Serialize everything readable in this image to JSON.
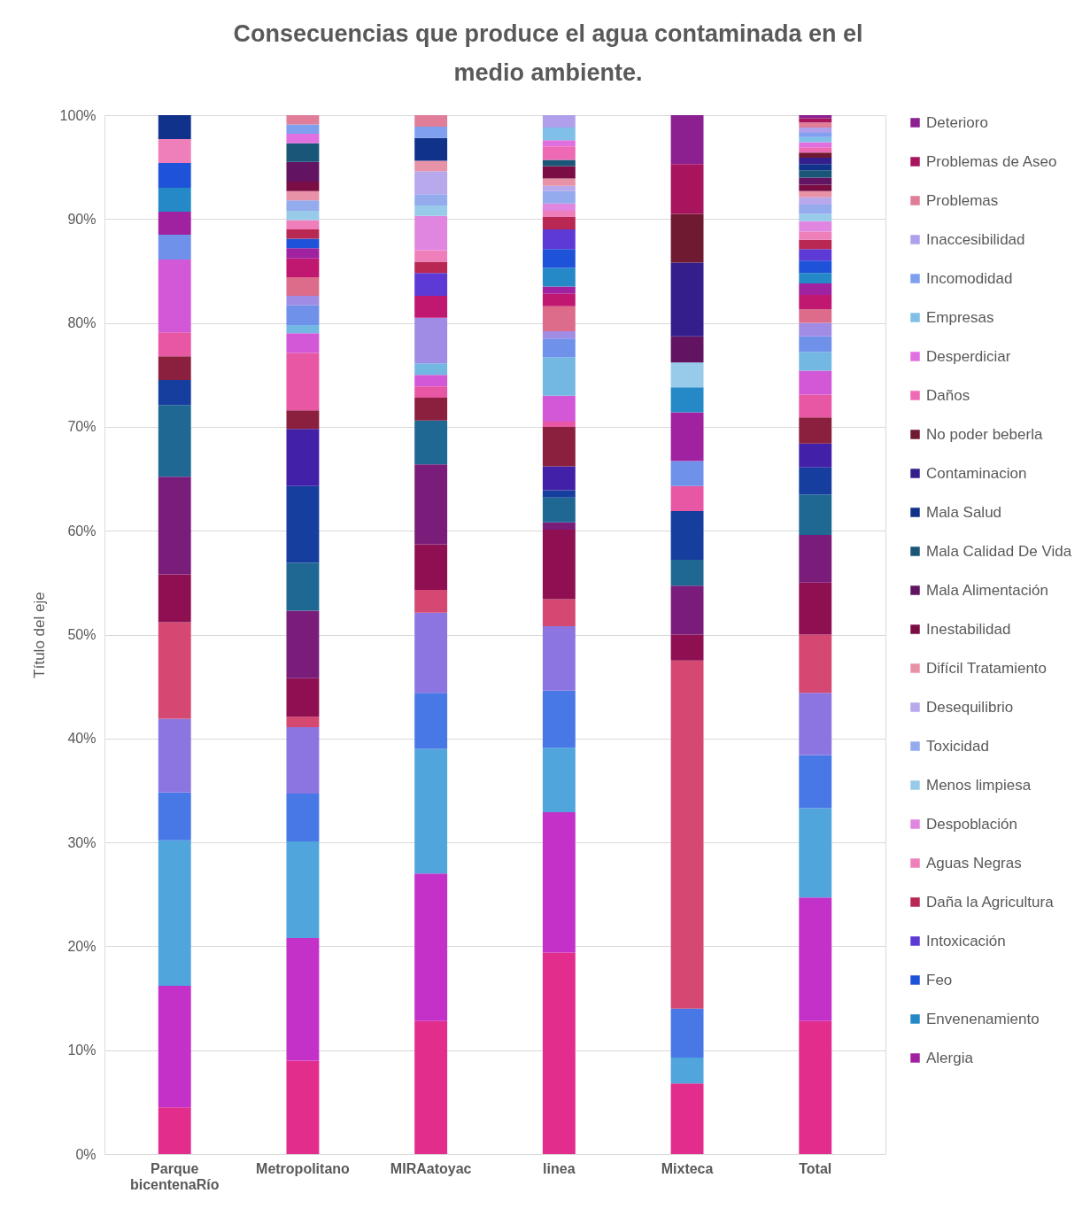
{
  "chart_data": {
    "type": "bar",
    "stacked": true,
    "title": "Consecuencias que produce el agua contaminada en el medio ambiente.",
    "ylabel": "Título del eje",
    "categories": [
      "Parque bicentenaRío",
      "Metropolitano",
      "MIRAatoyac",
      "linea",
      "Mixteca",
      "Total"
    ],
    "ylim": [
      0,
      100
    ],
    "yticks": [
      {
        "value": 0,
        "label": "0%"
      },
      {
        "value": 10,
        "label": "10%"
      },
      {
        "value": 20,
        "label": "20%"
      },
      {
        "value": 30,
        "label": "30%"
      },
      {
        "value": 40,
        "label": "40%"
      },
      {
        "value": 50,
        "label": "50%"
      },
      {
        "value": 60,
        "label": "60%"
      },
      {
        "value": 70,
        "label": "70%"
      },
      {
        "value": 80,
        "label": "80%"
      },
      {
        "value": 90,
        "label": "90%"
      },
      {
        "value": 100,
        "label": "100%"
      }
    ],
    "grid": "y",
    "legend": "right",
    "series": [
      {
        "color": "#e32d8d",
        "values": [
          4.5,
          9.0,
          12.8,
          19.4,
          6.8,
          12.8
        ]
      },
      {
        "color": "#c431c9",
        "values": [
          11.7,
          11.8,
          14.2,
          13.5,
          null,
          11.9
        ]
      },
      {
        "color": "#4fa5dc",
        "values": [
          14.0,
          9.3,
          12.0,
          6.2,
          2.5,
          8.6
        ]
      },
      {
        "color": "#4877e6",
        "values": [
          4.6,
          4.6,
          5.4,
          5.5,
          4.7,
          5.1
        ]
      },
      {
        "color": "#8c75e0",
        "values": [
          7.1,
          6.4,
          7.7,
          6.2,
          null,
          6.0
        ]
      },
      {
        "color": "#d44871",
        "values": [
          9.3,
          1.0,
          2.2,
          2.6,
          33.5,
          5.6
        ]
      },
      {
        "color": "#8e1052",
        "values": [
          4.6,
          3.7,
          4.4,
          6.7,
          2.5,
          5.0
        ]
      },
      {
        "color": "#7a1d7a",
        "values": [
          9.4,
          6.5,
          7.7,
          0.7,
          4.7,
          4.6
        ]
      },
      {
        "color": "#1f6894",
        "values": [
          6.9,
          4.6,
          4.2,
          2.4,
          2.5,
          3.9
        ]
      },
      {
        "color": "#163e9e",
        "values": [
          2.4,
          7.4,
          null,
          0.7,
          4.7,
          2.6
        ]
      },
      {
        "color": "#4221a8",
        "values": [
          null,
          5.5,
          null,
          2.3,
          null,
          2.3
        ]
      },
      {
        "color": "#8a1f3e",
        "values": [
          2.3,
          1.8,
          2.2,
          3.8,
          null,
          2.5
        ]
      },
      {
        "color": "#e857a3",
        "values": [
          2.3,
          5.5,
          1.1,
          0.5,
          2.4,
          2.2
        ]
      },
      {
        "color": "#d358d8",
        "values": [
          7.0,
          1.9,
          1.1,
          2.5,
          null,
          2.3
        ]
      },
      {
        "color": "#73b8e2",
        "values": [
          null,
          0.8,
          1.1,
          3.7,
          null,
          1.8
        ]
      },
      {
        "color": "#6f91ea",
        "values": [
          2.4,
          1.9,
          null,
          1.8,
          2.4,
          1.5
        ]
      },
      {
        "color": "#a08ce4",
        "values": [
          null,
          0.9,
          4.4,
          0.7,
          null,
          1.3
        ]
      },
      {
        "color": "#dd6c8b",
        "values": [
          null,
          1.8,
          null,
          2.4,
          null,
          1.3
        ]
      },
      {
        "color": "#c01870",
        "values": [
          null,
          1.8,
          2.1,
          1.2,
          null,
          1.4
        ]
      },
      {
        "name": "Alergia",
        "color": "#a022a0",
        "values": [
          2.2,
          1.0,
          null,
          0.7,
          4.7,
          1.1
        ]
      },
      {
        "name": "Envenenamiento",
        "color": "#2489c6",
        "values": [
          2.3,
          null,
          null,
          1.8,
          2.4,
          1.0
        ]
      },
      {
        "name": "Feo",
        "color": "#1e52d8",
        "values": [
          2.4,
          0.9,
          null,
          1.8,
          null,
          1.2
        ]
      },
      {
        "name": "Intoxicación",
        "color": "#5d3ad6",
        "values": [
          null,
          null,
          2.2,
          1.9,
          null,
          1.1
        ]
      },
      {
        "name": "Daña la Agricultura",
        "color": "#b82852",
        "values": [
          null,
          0.9,
          1.1,
          1.2,
          null,
          0.9
        ]
      },
      {
        "name": "Aguas Negras",
        "color": "#ee7fba",
        "values": [
          2.3,
          0.9,
          1.1,
          0.6,
          null,
          0.8
        ]
      },
      {
        "name": "Despoblación",
        "color": "#e086e0",
        "values": [
          null,
          null,
          3.3,
          0.7,
          null,
          1.0
        ]
      },
      {
        "name": "Menos limpiesa",
        "color": "#98cbea",
        "values": [
          null,
          0.9,
          1.0,
          null,
          2.4,
          0.7
        ]
      },
      {
        "name": "Toxicidad",
        "color": "#94abee",
        "values": [
          null,
          1.0,
          1.1,
          1.2,
          null,
          0.9
        ]
      },
      {
        "name": "Desequilibrio",
        "color": "#b8a8ec",
        "values": [
          null,
          null,
          2.2,
          0.5,
          null,
          0.7
        ]
      },
      {
        "name": "Difícil Tratamiento",
        "color": "#e892a8",
        "values": [
          null,
          0.9,
          1.0,
          0.7,
          null,
          0.6
        ]
      },
      {
        "name": "Inestabilidad",
        "color": "#7a0e44",
        "values": [
          null,
          0.9,
          null,
          1.2,
          null,
          0.6
        ]
      },
      {
        "name": "Mala Alimentación",
        "color": "#621462",
        "values": [
          null,
          1.9,
          null,
          null,
          2.5,
          0.7
        ]
      },
      {
        "name": "Mala Calidad De Vida",
        "color": "#1a5678",
        "values": [
          null,
          1.8,
          null,
          0.6,
          null,
          0.7
        ]
      },
      {
        "name": "Mala Salud",
        "color": "#10328a",
        "values": [
          2.3,
          null,
          2.2,
          null,
          null,
          0.6
        ]
      },
      {
        "name": "Contaminacion",
        "color": "#341e8c",
        "values": [
          null,
          null,
          null,
          null,
          7.1,
          0.6
        ]
      },
      {
        "name": "No poder beberla",
        "color": "#701a32",
        "values": [
          null,
          null,
          null,
          null,
          4.7,
          0.5
        ]
      },
      {
        "name": "Daños",
        "color": "#ee6ab4",
        "values": [
          null,
          null,
          null,
          1.3,
          null,
          0.5
        ]
      },
      {
        "name": "Desperdiciar",
        "color": "#e070e0",
        "values": [
          null,
          0.9,
          null,
          0.6,
          null,
          0.5
        ]
      },
      {
        "name": "Empresas",
        "color": "#80c0e8",
        "values": [
          null,
          null,
          null,
          1.2,
          null,
          0.5
        ]
      },
      {
        "name": "Incomodidad",
        "color": "#7ea0ee",
        "values": [
          null,
          0.9,
          1.1,
          null,
          null,
          0.4
        ]
      },
      {
        "name": "Inaccesibilidad",
        "color": "#b0a0ec",
        "values": [
          null,
          null,
          null,
          1.2,
          null,
          0.5
        ]
      },
      {
        "name": "Problemas",
        "color": "#e07e9a",
        "values": [
          null,
          0.9,
          1.1,
          null,
          null,
          0.5
        ]
      },
      {
        "name": "Problemas de Aseo",
        "color": "#a8145e",
        "values": [
          null,
          null,
          null,
          null,
          4.8,
          0.4
        ]
      },
      {
        "name": "Deterioro",
        "color": "#8c2090",
        "values": [
          null,
          null,
          null,
          null,
          4.7,
          0.3
        ]
      }
    ]
  }
}
